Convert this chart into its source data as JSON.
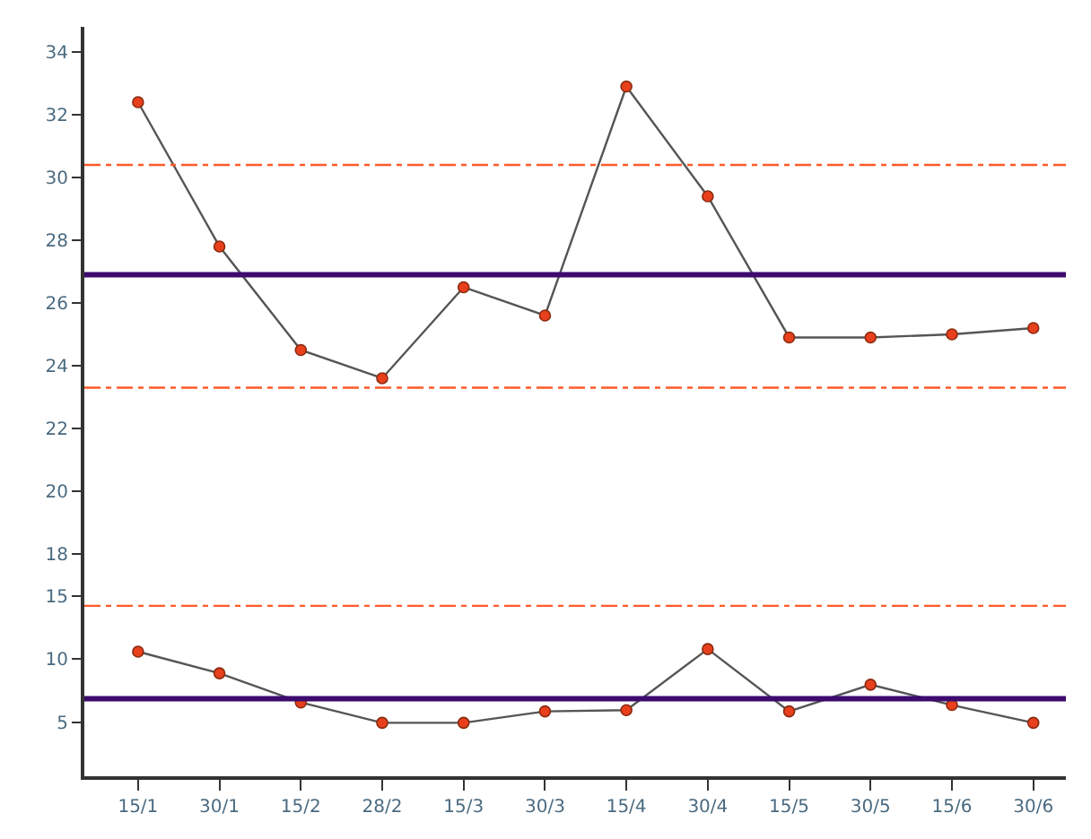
{
  "chart_data": [
    {
      "type": "line",
      "categories": [
        "15/1",
        "30/1",
        "15/2",
        "28/2",
        "15/3",
        "30/3",
        "15/4",
        "30/4",
        "15/5",
        "30/5",
        "15/6",
        "30/6"
      ],
      "series": [
        {
          "color": "#555555",
          "values": [
            32.4,
            27.8,
            24.5,
            23.6,
            26.5,
            25.6,
            32.9,
            29.4,
            24.9,
            24.9,
            25.0,
            25.2
          ]
        }
      ],
      "marker": "circle",
      "line_style": "solid",
      "tick_labels": "y",
      "ylim": [
        17.6,
        34.8
      ],
      "yticks": [
        18,
        20,
        22,
        24,
        26,
        28,
        30,
        32,
        34
      ],
      "ref_lines": [
        {
          "axis": "y",
          "value": 30.4,
          "color": "#ff5a2a",
          "line_style": "dashed"
        },
        {
          "axis": "y",
          "value": 26.9,
          "color": "#3d0a6e",
          "line_style": "solid"
        },
        {
          "axis": "y",
          "value": 23.3,
          "color": "#ff5a2a",
          "line_style": "dashed"
        }
      ]
    },
    {
      "type": "line",
      "categories": [
        "15/1",
        "30/1",
        "15/2",
        "28/2",
        "15/3",
        "30/3",
        "15/4",
        "30/4",
        "15/5",
        "30/5",
        "15/6",
        "30/6"
      ],
      "series": [
        {
          "color": "#555555",
          "values": [
            10.6,
            8.9,
            6.6,
            5.0,
            5.0,
            5.9,
            6.0,
            10.8,
            5.9,
            8.0,
            6.4,
            5.0
          ]
        }
      ],
      "marker": "circle",
      "line_style": "solid",
      "ylim": [
        0.8,
        17.3
      ],
      "yticks": [
        5,
        10,
        15
      ],
      "ref_lines": [
        {
          "axis": "y",
          "value": 14.2,
          "color": "#ff5a2a",
          "line_style": "dashed"
        },
        {
          "axis": "y",
          "value": 6.9,
          "color": "#3d0a6e",
          "line_style": "solid"
        }
      ]
    }
  ]
}
